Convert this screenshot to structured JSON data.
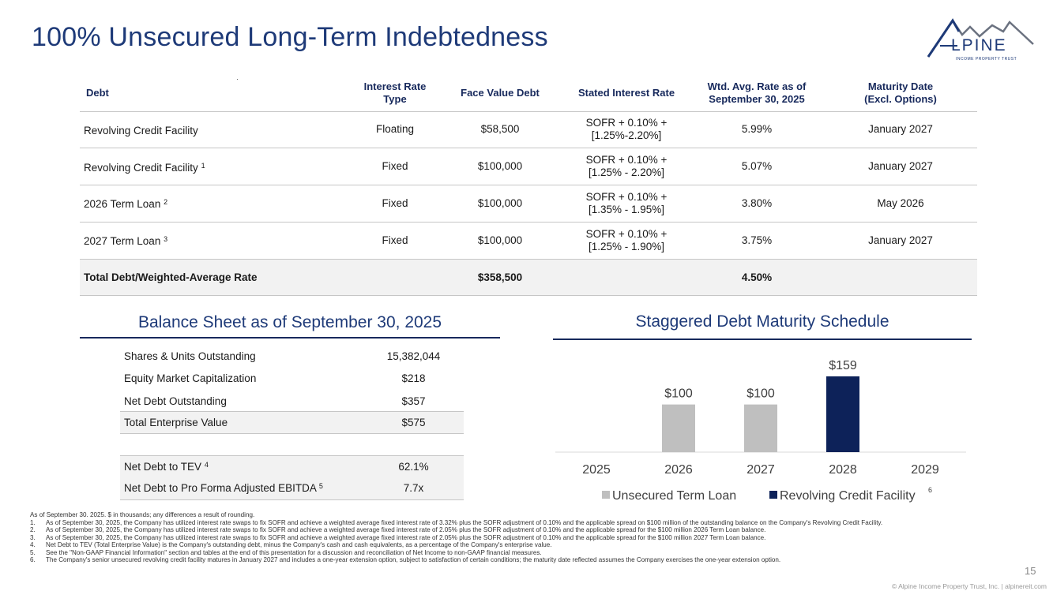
{
  "title": "100% Unsecured Long-Term Indebtedness",
  "logo": {
    "text": "LPINE",
    "subtext": "INCOME PROPERTY TRUST",
    "brand_color": "#1e3a78",
    "icon": "mountain-a-logo"
  },
  "debt_table": {
    "headers": [
      "Debt",
      "Interest Rate Type",
      "Face Value Debt",
      "Stated Interest Rate",
      "Wtd. Avg. Rate as of September 30, 2025",
      "Maturity Date (Excl. Options)"
    ],
    "header_lines": {
      "wtd_1": "Wtd. Avg. Rate as of",
      "wtd_2": "September 30, 2025",
      "mat_1": "Maturity Date",
      "mat_2": "(Excl. Options)"
    },
    "rows": [
      {
        "debt": "Revolving Credit Facility",
        "sup": "",
        "type": "Floating",
        "face": "$58,500",
        "rate_1": "SOFR + 0.10% +",
        "rate_2": "[1.25%-2.20%]",
        "wtd": "5.99%",
        "maturity": "January 2027"
      },
      {
        "debt": "Revolving Credit Facility",
        "sup": "1",
        "type": "Fixed",
        "face": "$100,000",
        "rate_1": "SOFR + 0.10% +",
        "rate_2": "[1.25% - 2.20%]",
        "wtd": "5.07%",
        "maturity": "January 2027"
      },
      {
        "debt": "2026 Term Loan",
        "sup": "2",
        "type": "Fixed",
        "face": "$100,000",
        "rate_1": "SOFR + 0.10% +",
        "rate_2": "[1.35% - 1.95%]",
        "wtd": "3.80%",
        "maturity": "May 2026"
      },
      {
        "debt": "2027 Term Loan",
        "sup": "3",
        "type": "Fixed",
        "face": "$100,000",
        "rate_1": "SOFR + 0.10% +",
        "rate_2": "[1.25% - 1.90%]",
        "wtd": "3.75%",
        "maturity": "January 2027"
      }
    ],
    "total": {
      "label": "Total Debt/Weighted-Average Rate",
      "face": "$358,500",
      "wtd": "4.50%"
    }
  },
  "balance_sheet": {
    "title": "Balance Sheet as of September 30, 2025",
    "rows": [
      {
        "label": "Shares & Units Outstanding",
        "sup": "",
        "value": "15,382,044"
      },
      {
        "label": "Equity Market Capitalization",
        "sup": "",
        "value": "$218"
      },
      {
        "label": "Net Debt Outstanding",
        "sup": "",
        "value": "$357"
      },
      {
        "label": "Total Enterprise Value",
        "sup": "",
        "value": "$575"
      },
      {
        "label": "Net Debt to TEV",
        "sup": "4",
        "value": "62.1%"
      },
      {
        "label": "Net Debt to Pro Forma Adjusted EBITDA",
        "sup": "5",
        "value": "7.7x"
      }
    ]
  },
  "maturity_chart_title": "Staggered Debt Maturity Schedule",
  "chart_data": {
    "type": "bar",
    "title": "Staggered Debt Maturity Schedule",
    "categories": [
      "2025",
      "2026",
      "2027",
      "2028",
      "2029"
    ],
    "series": [
      {
        "name": "Unsecured Term Loan",
        "values": [
          0,
          100,
          100,
          0,
          0
        ],
        "color": "#bfbfbf"
      },
      {
        "name": "Revolving Credit Facility",
        "values": [
          0,
          0,
          0,
          159,
          0
        ],
        "color": "#0d2259"
      }
    ],
    "data_labels": [
      "",
      "$100",
      "$100",
      "$159",
      ""
    ],
    "legend_sup": "6",
    "legend_position": "bottom",
    "grid": false
  },
  "footnotes": {
    "intro": "As of September 30. 2025. $ in thousands; any differences a result of rounding.",
    "items": [
      {
        "num": "1.",
        "text": "As of September 30, 2025, the Company has utilized interest rate swaps to fix SOFR and achieve a weighted average fixed interest rate of 3.32% plus the SOFR adjustment of 0.10% and the applicable spread on $100 million of the outstanding balance on the Company's Revolving Credit Facility."
      },
      {
        "num": "2.",
        "text": "As of September 30, 2025, the Company has utilized interest rate swaps to fix SOFR and achieve a weighted average fixed interest rate of 2.05% plus the SOFR adjustment of 0.10% and the applicable spread for the $100 million 2026 Term Loan balance."
      },
      {
        "num": "3.",
        "text": "As of September 30, 2025, the Company has utilized interest rate swaps to fix SOFR and achieve a weighted average fixed interest rate of 2.05% plus the SOFR adjustment of 0.10% and the applicable spread for the $100 million 2027 Term Loan balance."
      },
      {
        "num": "4.",
        "text": "Net Debt to TEV (Total Enterprise Value) is the Company's outstanding debt, minus the Company's cash and cash equivalents, as a percentage of the Company's enterprise value."
      },
      {
        "num": "5.",
        "text": "See the \"Non-GAAP Financial Information\" section and tables at the end of this presentation for a discussion and reconciliation of Net Income to non-GAAP financial measures."
      },
      {
        "num": "6.",
        "text": "The Company's senior unsecured revolving credit facility matures in January 2027 and includes a one-year extension option, subject to satisfaction of certain conditions; the maturity date reflected assumes the Company exercises the one-year extension option."
      }
    ]
  },
  "page_number": "15",
  "copyright": "© Alpine Income Property Trust, Inc.  |  alpinereit.com"
}
